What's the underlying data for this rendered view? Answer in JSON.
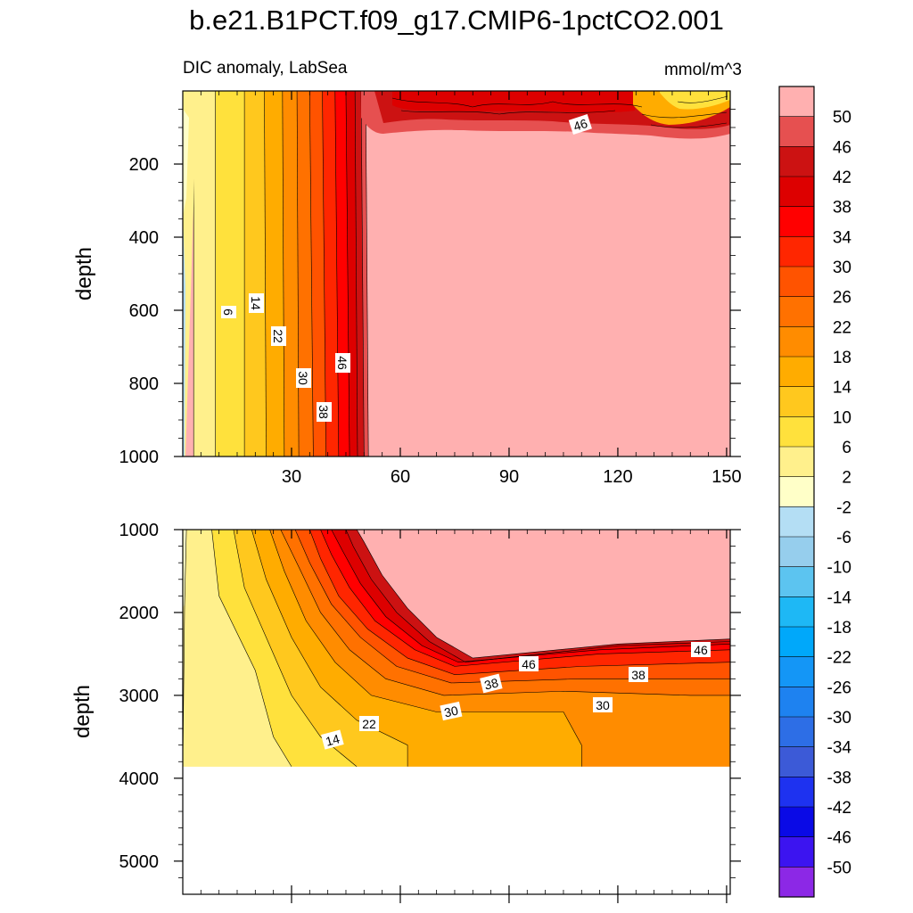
{
  "chart_data": {
    "type": "heatmap",
    "title": "b.e21.B1PCT.f09_g17.CMIP6-1pctCO2.001",
    "subtitle": "DIC anomaly, LabSea",
    "units": "mmol/m^3",
    "x_ticks": [
      "30",
      "60",
      "90",
      "120",
      "150"
    ],
    "xlim": [
      0,
      151
    ],
    "colorbar": {
      "levels": [
        "50",
        "46",
        "42",
        "38",
        "34",
        "30",
        "26",
        "22",
        "18",
        "14",
        "10",
        "6",
        "2",
        "-2",
        "-6",
        "-10",
        "-14",
        "-18",
        "-22",
        "-26",
        "-30",
        "-34",
        "-38",
        "-42",
        "-46",
        "-50"
      ],
      "colors": [
        "#ffb0b0",
        "#e65050",
        "#cc1212",
        "#dd0000",
        "#ff0000",
        "#ff2600",
        "#ff5300",
        "#ff7100",
        "#ff8c00",
        "#ffac00",
        "#ffc81e",
        "#ffe13c",
        "#fff08c",
        "#ffffc8",
        "#b4def4",
        "#96ceed",
        "#5cc4f0",
        "#1eb8f5",
        "#00a8fa",
        "#1496f6",
        "#1e82f0",
        "#2d6ee6",
        "#3c5ad7",
        "#1e32f0",
        "#0a0ae6",
        "#3c14f0",
        "#8c28e6"
      ]
    },
    "panels": [
      {
        "name": "upper",
        "ylabel": "depth",
        "ylim": [
          0,
          1000
        ],
        "y_ticks": [
          "200",
          "400",
          "600",
          "800",
          "1000"
        ],
        "contour_labels": [
          "6",
          "14",
          "22",
          "30",
          "38",
          "46",
          "46"
        ]
      },
      {
        "name": "lower",
        "ylabel": "depth",
        "ylim": [
          1000,
          5400
        ],
        "y_ticks": [
          "1000",
          "2000",
          "3000",
          "4000",
          "5000"
        ],
        "contour_labels": [
          "14",
          "22",
          "30",
          "30",
          "38",
          "38",
          "46",
          "46"
        ]
      }
    ]
  }
}
